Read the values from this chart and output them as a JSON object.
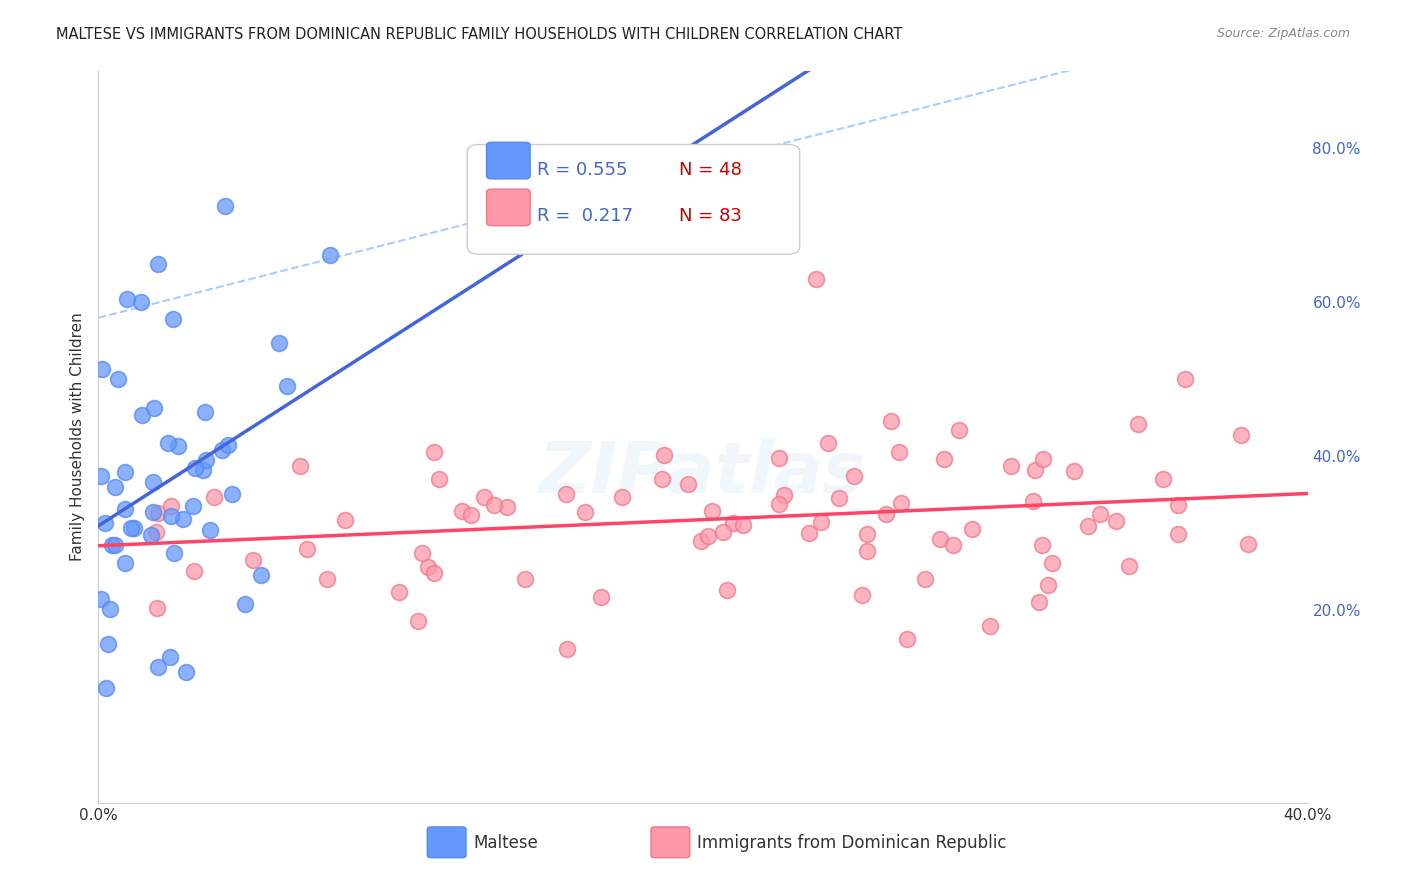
{
  "title": "MALTESE VS IMMIGRANTS FROM DOMINICAN REPUBLIC FAMILY HOUSEHOLDS WITH CHILDREN CORRELATION CHART",
  "source": "Source: ZipAtlas.com",
  "ylabel_left": "Family Households with Children",
  "xlim": [
    0.0,
    0.4
  ],
  "ylim": [
    -0.05,
    0.9
  ],
  "right_yticks": [
    0.2,
    0.4,
    0.6,
    0.8
  ],
  "right_yticklabels": [
    "20.0%",
    "40.0%",
    "60.0%",
    "80.0%"
  ],
  "bottom_xticks": [
    0.0,
    0.05,
    0.1,
    0.15,
    0.2,
    0.25,
    0.3,
    0.35,
    0.4
  ],
  "bottom_xticklabels": [
    "0.0%",
    "",
    "",
    "",
    "",
    "",
    "",
    "",
    "40.0%"
  ],
  "grid_color": "#cccccc",
  "background_color": "#ffffff",
  "maltese_color": "#6699ff",
  "maltese_edge_color": "#5588ee",
  "dominican_color": "#ff99aa",
  "dominican_edge_color": "#ee7788",
  "legend_r_color": "#4466cc",
  "legend_n_color": "#cc0000",
  "title_fontsize": 10.5,
  "axis_label_fontsize": 11,
  "tick_label_fontsize": 11,
  "legend_fontsize": 13
}
